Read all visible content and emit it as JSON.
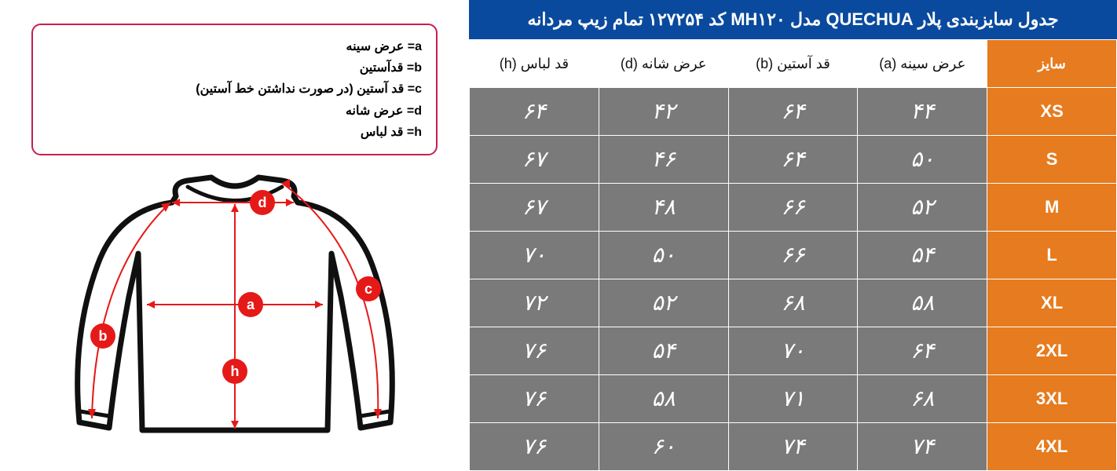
{
  "title": "جدول سایزبندی پلار QUECHUA مدل MH۱۲۰ کد ۱۲۷۲۵۴ تمام زیپ مردانه",
  "colors": {
    "title_bg": "#0a4a9e",
    "header_bg": "#ffffff",
    "header_fg": "#111111",
    "size_bg": "#e67b1f",
    "size_fg": "#ffffff",
    "body_bg": "#7a7a7a",
    "body_fg": "#ffffff",
    "legend_border": "#c91e4e",
    "marker_fill": "#e61919"
  },
  "columns": [
    {
      "key": "size",
      "label": "سایز",
      "is_size": true
    },
    {
      "key": "a",
      "label": "عرض سینه (a)"
    },
    {
      "key": "b",
      "label": "قد آستین (b)"
    },
    {
      "key": "d",
      "label": "عرض شانه (d)"
    },
    {
      "key": "h",
      "label": "قد لباس (h)"
    }
  ],
  "rows": [
    {
      "size": "XS",
      "a": "۴۴",
      "b": "۶۴",
      "d": "۴۲",
      "h": "۶۴"
    },
    {
      "size": "S",
      "a": "۵۰",
      "b": "۶۴",
      "d": "۴۶",
      "h": "۶۷"
    },
    {
      "size": "M",
      "a": "۵۲",
      "b": "۶۶",
      "d": "۴۸",
      "h": "۶۷"
    },
    {
      "size": "L",
      "a": "۵۴",
      "b": "۶۶",
      "d": "۵۰",
      "h": "۷۰"
    },
    {
      "size": "XL",
      "a": "۵۸",
      "b": "۶۸",
      "d": "۵۲",
      "h": "۷۲"
    },
    {
      "size": "2XL",
      "a": "۶۴",
      "b": "۷۰",
      "d": "۵۴",
      "h": "۷۶"
    },
    {
      "size": "3XL",
      "a": "۶۸",
      "b": "۷۱",
      "d": "۵۸",
      "h": "۷۶"
    },
    {
      "size": "4XL",
      "a": "۷۴",
      "b": "۷۴",
      "d": "۶۰",
      "h": "۷۶"
    }
  ],
  "legend": [
    {
      "key": "a",
      "text": "a= عرض سینه"
    },
    {
      "key": "b",
      "text": "b= قدآستین"
    },
    {
      "key": "c",
      "text": "c= قد آستین (در صورت نداشتن خط آستین)"
    },
    {
      "key": "d",
      "text": "d= عرض شانه"
    },
    {
      "key": "h",
      "text": "h= قد لباس"
    }
  ],
  "markers": {
    "a": "a",
    "b": "b",
    "c": "c",
    "d": "d",
    "h": "h"
  }
}
